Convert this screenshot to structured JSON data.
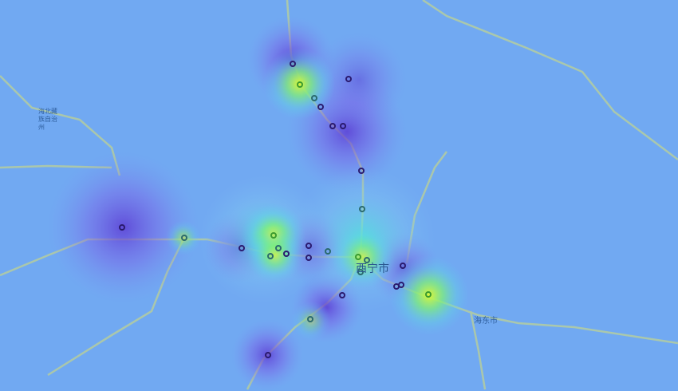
{
  "map": {
    "labels": {
      "xining": "西宁市",
      "haidong": "海东市",
      "haibei": "海北藏族自治州"
    },
    "colors": {
      "base": "#71a9f2",
      "heat_low": "#7b4de0",
      "heat_mid": "#44e0d0",
      "heat_high": "#c6f542",
      "road": "#c9d98f",
      "point_stroke": "#2a1a6e"
    }
  }
}
